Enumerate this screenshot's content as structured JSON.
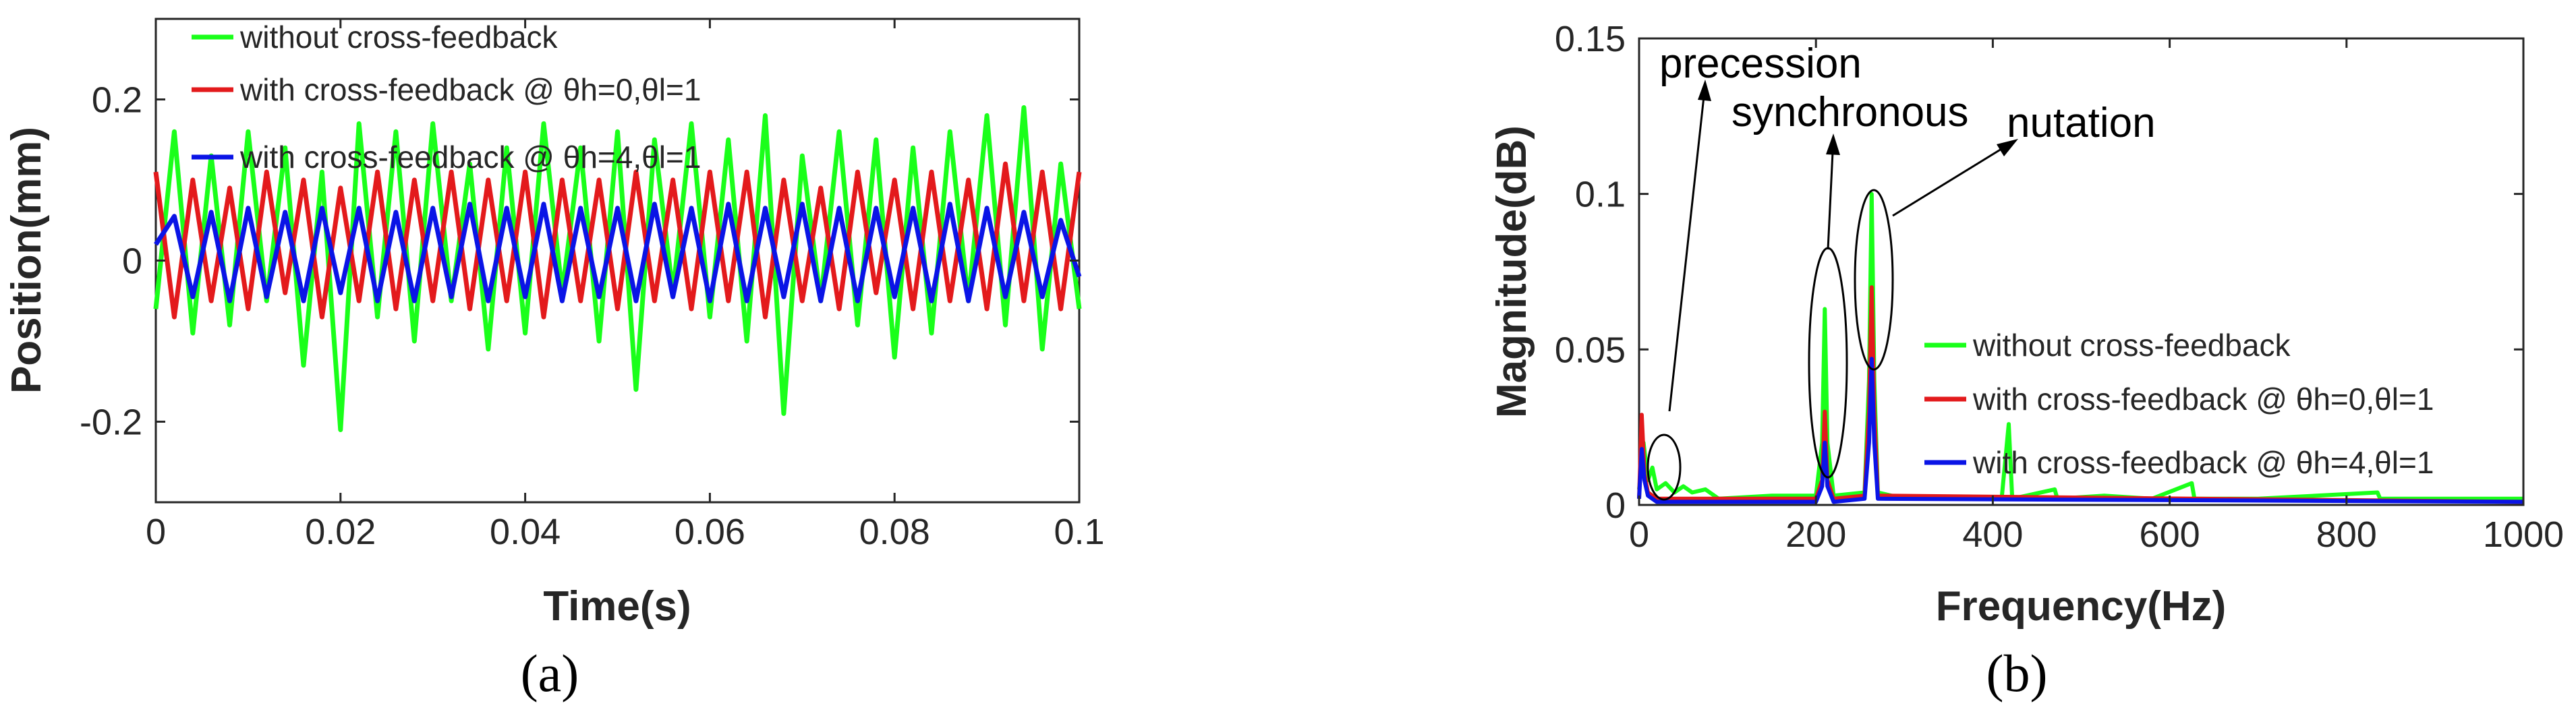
{
  "chart_data": [
    {
      "type": "line",
      "xlabel": "Time(s)",
      "ylabel": "Position(mm)",
      "xlim": [
        0,
        0.1
      ],
      "ylim": [
        -0.3,
        0.3
      ],
      "xticks": [
        "0",
        "0.02",
        "0.04",
        "0.06",
        "0.08",
        "0.1"
      ],
      "yticks": [
        "-0.2",
        "0",
        "0.2"
      ],
      "grid": false,
      "legend_position": "top-left",
      "series": [
        {
          "name": "without cross-feedback",
          "color": "#1aff1a",
          "x": [
            0,
            0.002,
            0.004,
            0.006,
            0.008,
            0.01,
            0.012,
            0.014,
            0.016,
            0.018,
            0.02,
            0.022,
            0.024,
            0.026,
            0.028,
            0.03,
            0.032,
            0.034,
            0.036,
            0.038,
            0.04,
            0.042,
            0.044,
            0.046,
            0.048,
            0.05,
            0.052,
            0.054,
            0.056,
            0.058,
            0.06,
            0.062,
            0.064,
            0.066,
            0.068,
            0.07,
            0.072,
            0.074,
            0.076,
            0.078,
            0.08,
            0.082,
            0.084,
            0.086,
            0.088,
            0.09,
            0.092,
            0.094,
            0.096,
            0.098,
            0.1
          ],
          "y": [
            -0.06,
            0.16,
            -0.09,
            0.13,
            -0.08,
            0.16,
            -0.05,
            0.14,
            -0.13,
            0.11,
            -0.21,
            0.17,
            -0.07,
            0.16,
            -0.1,
            0.17,
            -0.05,
            0.12,
            -0.11,
            0.14,
            -0.09,
            0.17,
            -0.04,
            0.14,
            -0.1,
            0.16,
            -0.16,
            0.15,
            -0.04,
            0.17,
            -0.07,
            0.15,
            -0.1,
            0.18,
            -0.19,
            0.13,
            -0.05,
            0.16,
            -0.08,
            0.15,
            -0.12,
            0.14,
            -0.09,
            0.16,
            -0.05,
            0.18,
            -0.08,
            0.19,
            -0.11,
            0.12,
            -0.06
          ]
        },
        {
          "name": "with cross-feedback @ θh=0,θl=1",
          "color": "#e31a1c",
          "x": [
            0,
            0.002,
            0.004,
            0.006,
            0.008,
            0.01,
            0.012,
            0.014,
            0.016,
            0.018,
            0.02,
            0.022,
            0.024,
            0.026,
            0.028,
            0.03,
            0.032,
            0.034,
            0.036,
            0.038,
            0.04,
            0.042,
            0.044,
            0.046,
            0.048,
            0.05,
            0.052,
            0.054,
            0.056,
            0.058,
            0.06,
            0.062,
            0.064,
            0.066,
            0.068,
            0.07,
            0.072,
            0.074,
            0.076,
            0.078,
            0.08,
            0.082,
            0.084,
            0.086,
            0.088,
            0.09,
            0.092,
            0.094,
            0.096,
            0.098,
            0.1
          ],
          "y": [
            0.11,
            -0.07,
            0.1,
            -0.05,
            0.09,
            -0.06,
            0.11,
            -0.04,
            0.1,
            -0.07,
            0.09,
            -0.05,
            0.11,
            -0.06,
            0.1,
            -0.05,
            0.11,
            -0.06,
            0.1,
            -0.05,
            0.11,
            -0.07,
            0.1,
            -0.05,
            0.1,
            -0.06,
            0.11,
            -0.05,
            0.1,
            -0.06,
            0.11,
            -0.05,
            0.11,
            -0.07,
            0.1,
            -0.05,
            0.09,
            -0.06,
            0.11,
            -0.04,
            0.1,
            -0.06,
            0.11,
            -0.05,
            0.1,
            -0.06,
            0.12,
            -0.05,
            0.11,
            -0.06,
            0.11
          ]
        },
        {
          "name": "with cross-feedback @ θh=4,θl=1",
          "color": "#0a14e6",
          "x": [
            0,
            0.002,
            0.004,
            0.006,
            0.008,
            0.01,
            0.012,
            0.014,
            0.016,
            0.018,
            0.02,
            0.022,
            0.024,
            0.026,
            0.028,
            0.03,
            0.032,
            0.034,
            0.036,
            0.038,
            0.04,
            0.042,
            0.044,
            0.046,
            0.048,
            0.05,
            0.052,
            0.054,
            0.056,
            0.058,
            0.06,
            0.062,
            0.064,
            0.066,
            0.068,
            0.07,
            0.072,
            0.074,
            0.076,
            0.078,
            0.08,
            0.082,
            0.084,
            0.086,
            0.088,
            0.09,
            0.092,
            0.094,
            0.096,
            0.098,
            0.1
          ],
          "y": [
            0.02,
            0.055,
            -0.045,
            0.06,
            -0.05,
            0.065,
            -0.045,
            0.06,
            -0.05,
            0.065,
            -0.04,
            0.065,
            -0.05,
            0.06,
            -0.05,
            0.065,
            -0.045,
            0.07,
            -0.05,
            0.065,
            -0.045,
            0.07,
            -0.05,
            0.065,
            -0.045,
            0.065,
            -0.05,
            0.07,
            -0.045,
            0.065,
            -0.05,
            0.07,
            -0.05,
            0.065,
            -0.045,
            0.07,
            -0.05,
            0.065,
            -0.05,
            0.065,
            -0.045,
            0.065,
            -0.05,
            0.07,
            -0.05,
            0.065,
            -0.045,
            0.06,
            -0.045,
            0.05,
            -0.02
          ]
        }
      ],
      "subfigure_label": "(a)"
    },
    {
      "type": "line",
      "xlabel": "Frequency(Hz)",
      "ylabel": "Magnitude(dB)",
      "xlim": [
        0,
        1000
      ],
      "ylim": [
        0,
        0.15
      ],
      "xticks": [
        "0",
        "200",
        "400",
        "600",
        "800",
        "1000"
      ],
      "yticks": [
        "0",
        "0.05",
        "0.1",
        "0.15"
      ],
      "grid": false,
      "legend_position": "right-middle",
      "series": [
        {
          "name": "without cross-feedback",
          "color": "#1aff1a",
          "x": [
            0,
            5,
            10,
            15,
            20,
            30,
            40,
            50,
            60,
            75,
            90,
            150,
            200,
            207,
            210,
            213,
            220,
            255,
            260,
            263,
            266,
            270,
            300,
            410,
            418,
            422,
            470,
            473,
            526,
            580,
            625,
            628,
            700,
            835,
            838,
            1000
          ],
          "y": [
            0.005,
            0.02,
            0.008,
            0.012,
            0.005,
            0.007,
            0.004,
            0.006,
            0.004,
            0.005,
            0.002,
            0.003,
            0.003,
            0.02,
            0.063,
            0.02,
            0.003,
            0.004,
            0.04,
            0.1,
            0.04,
            0.004,
            0.002,
            0.002,
            0.026,
            0.002,
            0.005,
            0.002,
            0.003,
            0.002,
            0.007,
            0.002,
            0.002,
            0.004,
            0.002,
            0.002
          ]
        },
        {
          "name": "with cross-feedback @ θh=0,θl=1",
          "color": "#e31a1c",
          "x": [
            0,
            3,
            6,
            10,
            20,
            200,
            207,
            210,
            213,
            220,
            255,
            260,
            263,
            266,
            270,
            1000
          ],
          "y": [
            0.002,
            0.029,
            0.01,
            0.004,
            0.002,
            0.002,
            0.008,
            0.03,
            0.008,
            0.002,
            0.003,
            0.03,
            0.07,
            0.03,
            0.003,
            0.001
          ]
        },
        {
          "name": "with cross-feedback @ θh=4,θl=1",
          "color": "#0a14e6",
          "x": [
            0,
            3,
            6,
            10,
            20,
            200,
            207,
            210,
            213,
            220,
            255,
            260,
            263,
            266,
            270,
            1000
          ],
          "y": [
            0.002,
            0.018,
            0.008,
            0.003,
            0.001,
            0.001,
            0.006,
            0.02,
            0.006,
            0.001,
            0.002,
            0.02,
            0.047,
            0.02,
            0.002,
            0.001
          ]
        }
      ],
      "annotations": [
        "precession",
        "synchronous",
        "nutation"
      ],
      "subfigure_label": "(b)"
    }
  ]
}
